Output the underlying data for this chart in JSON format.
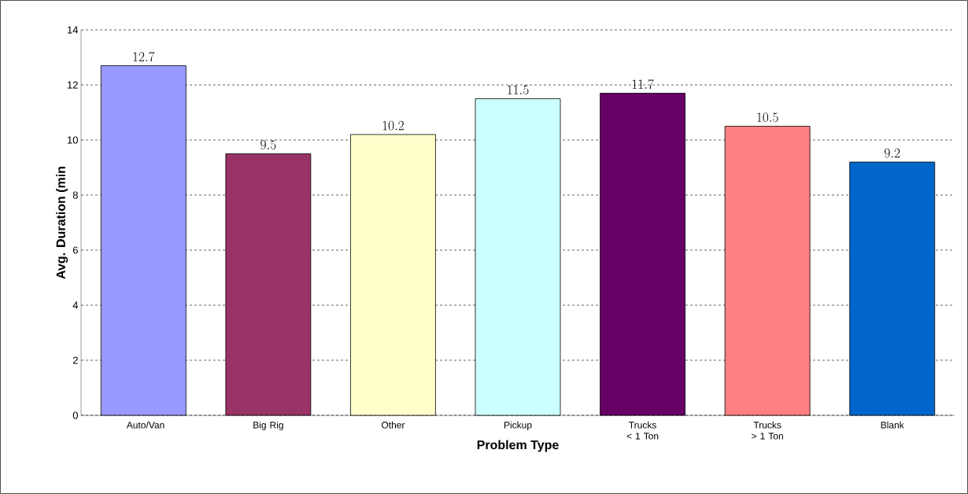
{
  "chart_data": {
    "type": "bar",
    "xlabel": "Problem Type",
    "ylabel": "Avg. Duration (min",
    "categories": [
      "Auto/Van",
      "Big Rig",
      "Other",
      "Pickup",
      "Trucks < 1 Ton",
      "Trucks > 1 Ton",
      "Blank"
    ],
    "values": [
      12.7,
      9.5,
      10.2,
      11.5,
      11.7,
      10.5,
      9.2
    ],
    "colors": [
      "#9999ff",
      "#993366",
      "#ffffcc",
      "#ccffff",
      "#660066",
      "#ff8080",
      "#0066cc"
    ],
    "ylim": [
      0,
      14
    ],
    "yticks": [
      0,
      2,
      4,
      6,
      8,
      10,
      12,
      14
    ],
    "grid": "y",
    "data_labels": true
  }
}
